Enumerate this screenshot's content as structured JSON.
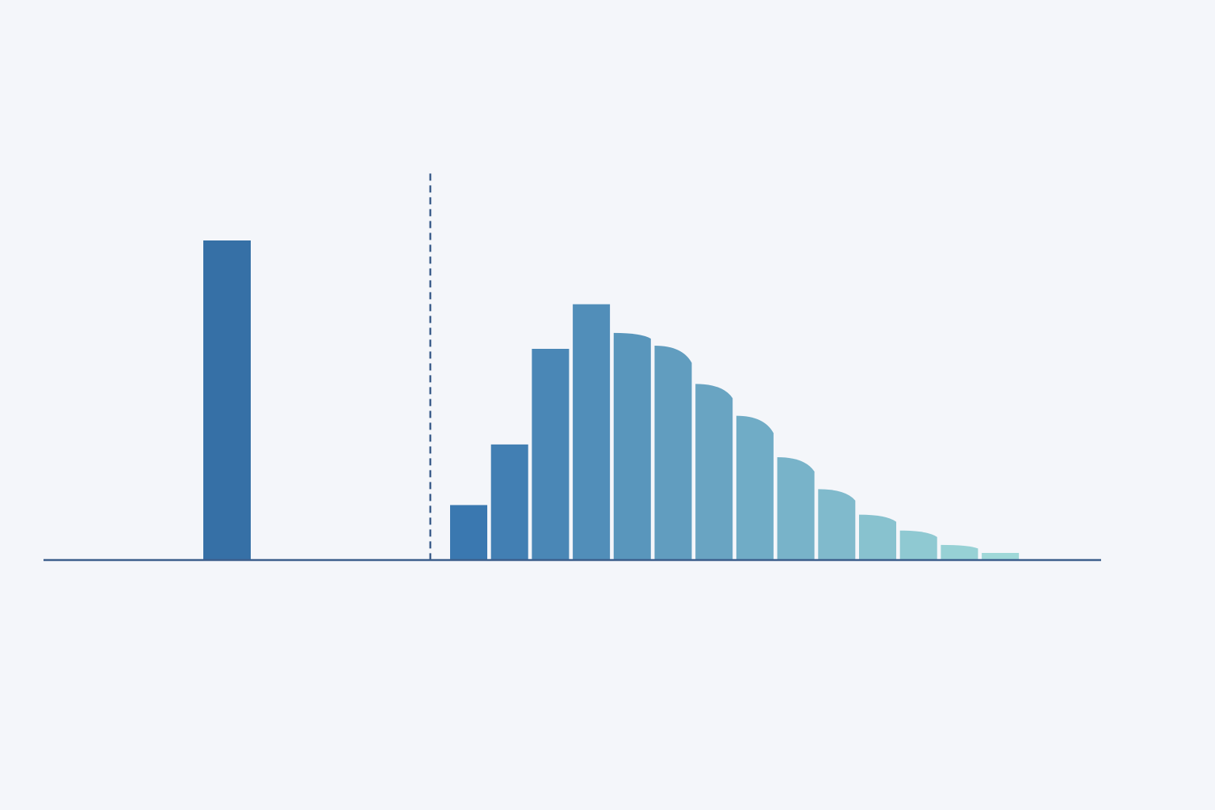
{
  "chart_data": {
    "type": "bar",
    "title": "",
    "xlabel": "",
    "ylabel": "",
    "ylim": [
      0,
      120
    ],
    "grid": false,
    "legend": "none",
    "isolated_bar": {
      "value": 100,
      "color": "#3670a6"
    },
    "marker_line": {
      "style": "dashed",
      "color": "#3d5f8c"
    },
    "distribution": {
      "values": [
        17,
        36,
        66,
        80,
        71,
        67,
        55,
        45,
        32,
        22,
        14,
        9,
        4.5,
        2
      ],
      "color_start": "#3a78b0",
      "color_end": "#9fd8d8"
    },
    "axis_color": "#3d5f8c",
    "background": "#f4f6fa"
  }
}
